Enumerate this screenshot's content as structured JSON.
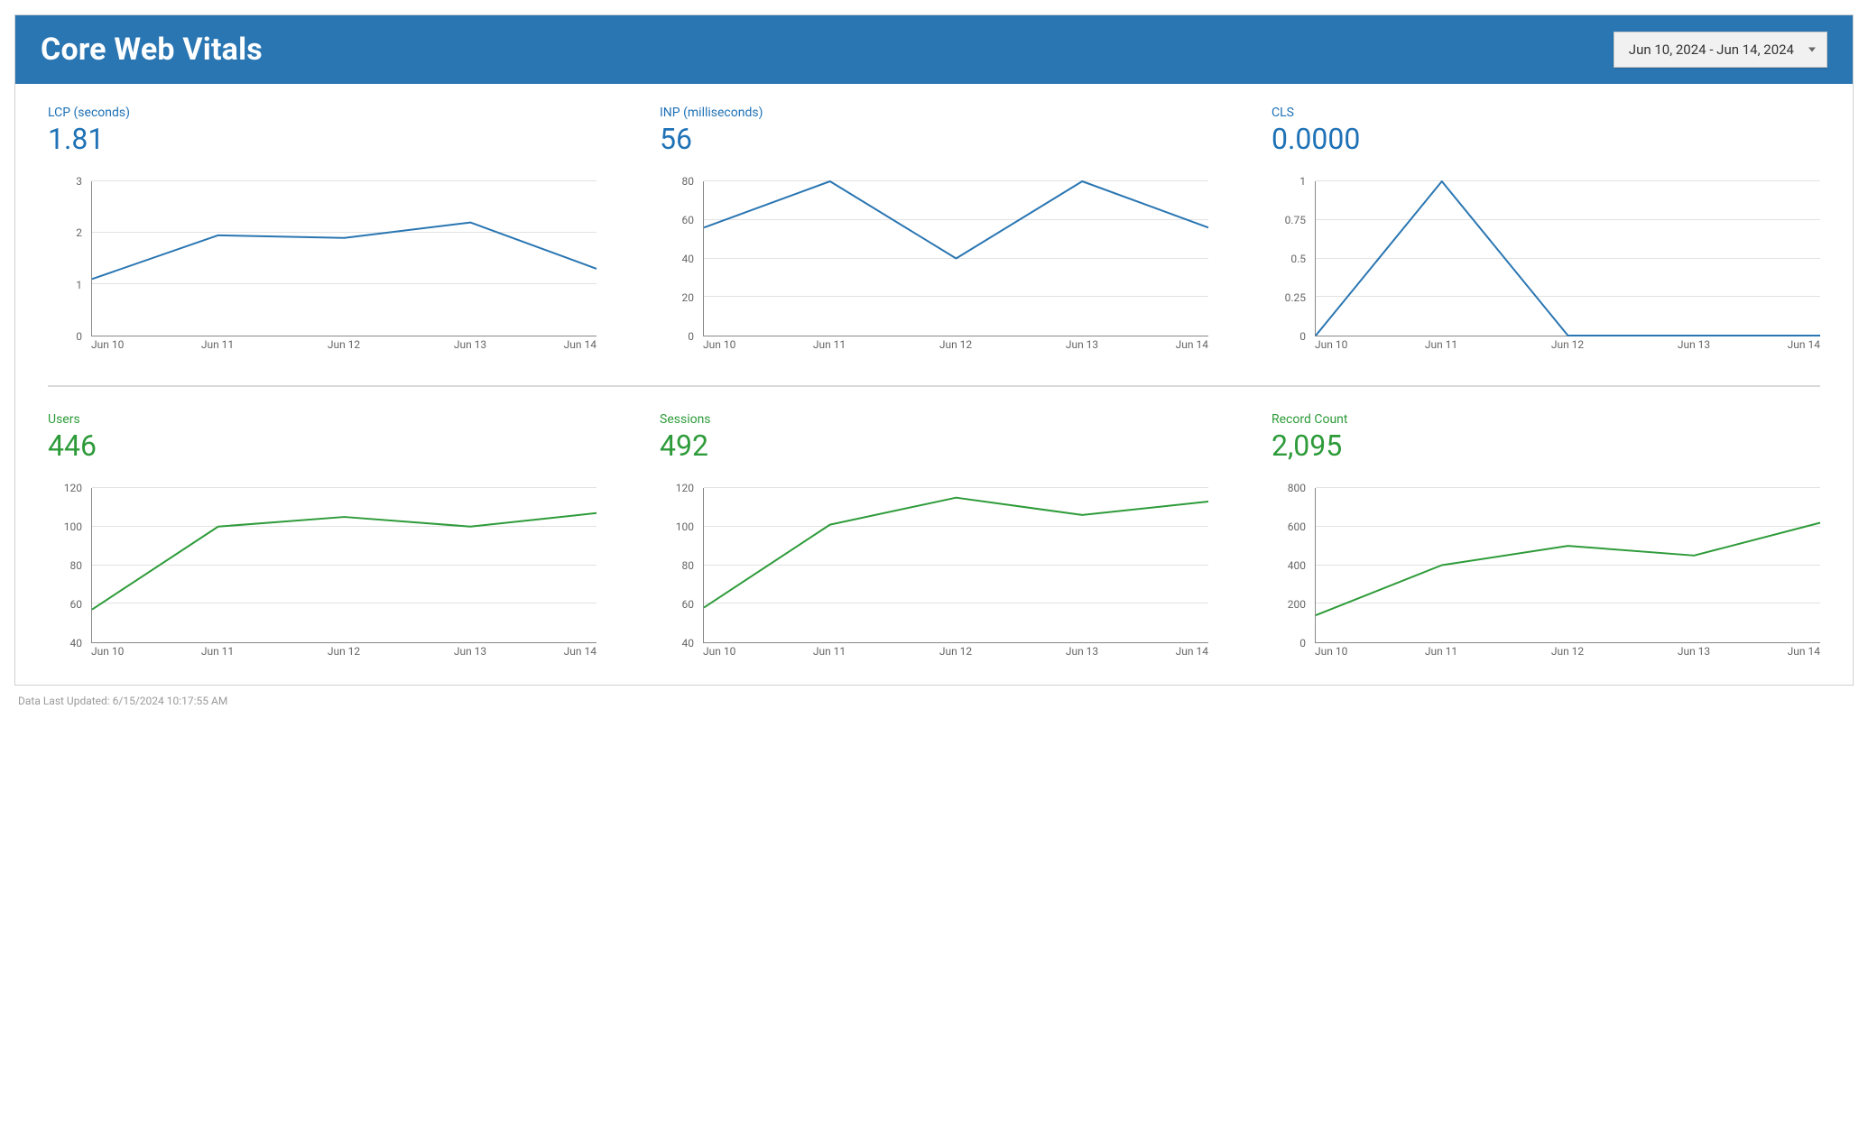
{
  "header": {
    "title": "Core Web Vitals",
    "date_range": "Jun 10, 2024 - Jun 14, 2024",
    "bg_color": "#2a76b2",
    "title_color": "#ffffff"
  },
  "footer": {
    "text": "Data Last Updated: 6/15/2024 10:17:55 AM"
  },
  "x_categories": [
    "Jun 10",
    "Jun 11",
    "Jun 12",
    "Jun 13",
    "Jun 14"
  ],
  "colors": {
    "top_accent": "#1f72b6",
    "bottom_accent": "#2e9b3a",
    "grid": "#e2e2e2",
    "axis": "#888888",
    "tick_text": "#666666",
    "line_width": 2
  },
  "metrics": {
    "lcp": {
      "label": "LCP (seconds)",
      "value": "1.81",
      "type": "line",
      "ylim": [
        0,
        3
      ],
      "yticks": [
        0,
        1,
        2,
        3
      ],
      "line_color": "#2a76b2",
      "data": [
        1.1,
        1.95,
        1.9,
        2.2,
        1.3
      ]
    },
    "inp": {
      "label": "INP (milliseconds)",
      "value": "56",
      "type": "line",
      "ylim": [
        0,
        80
      ],
      "yticks": [
        0,
        20,
        40,
        60,
        80
      ],
      "line_color": "#2a76b2",
      "data": [
        56,
        80,
        40,
        80,
        56
      ]
    },
    "cls": {
      "label": "CLS",
      "value": "0.0000",
      "type": "line",
      "ylim": [
        0,
        1
      ],
      "yticks": [
        0,
        0.25,
        0.5,
        0.75,
        1
      ],
      "line_color": "#2a76b2",
      "data": [
        0,
        1,
        0,
        0,
        0
      ]
    },
    "users": {
      "label": "Users",
      "value": "446",
      "type": "line",
      "ylim": [
        40,
        120
      ],
      "yticks": [
        40,
        60,
        80,
        100,
        120
      ],
      "line_color": "#2e9b3a",
      "data": [
        57,
        100,
        105,
        100,
        107
      ]
    },
    "sessions": {
      "label": "Sessions",
      "value": "492",
      "type": "line",
      "ylim": [
        40,
        120
      ],
      "yticks": [
        40,
        60,
        80,
        100,
        120
      ],
      "line_color": "#2e9b3a",
      "data": [
        58,
        101,
        115,
        106,
        113
      ]
    },
    "record_count": {
      "label": "Record Count",
      "value": "2,095",
      "type": "line",
      "ylim": [
        0,
        800
      ],
      "yticks": [
        0,
        200,
        400,
        600,
        800
      ],
      "line_color": "#2e9b3a",
      "data": [
        140,
        400,
        500,
        450,
        620
      ]
    }
  }
}
